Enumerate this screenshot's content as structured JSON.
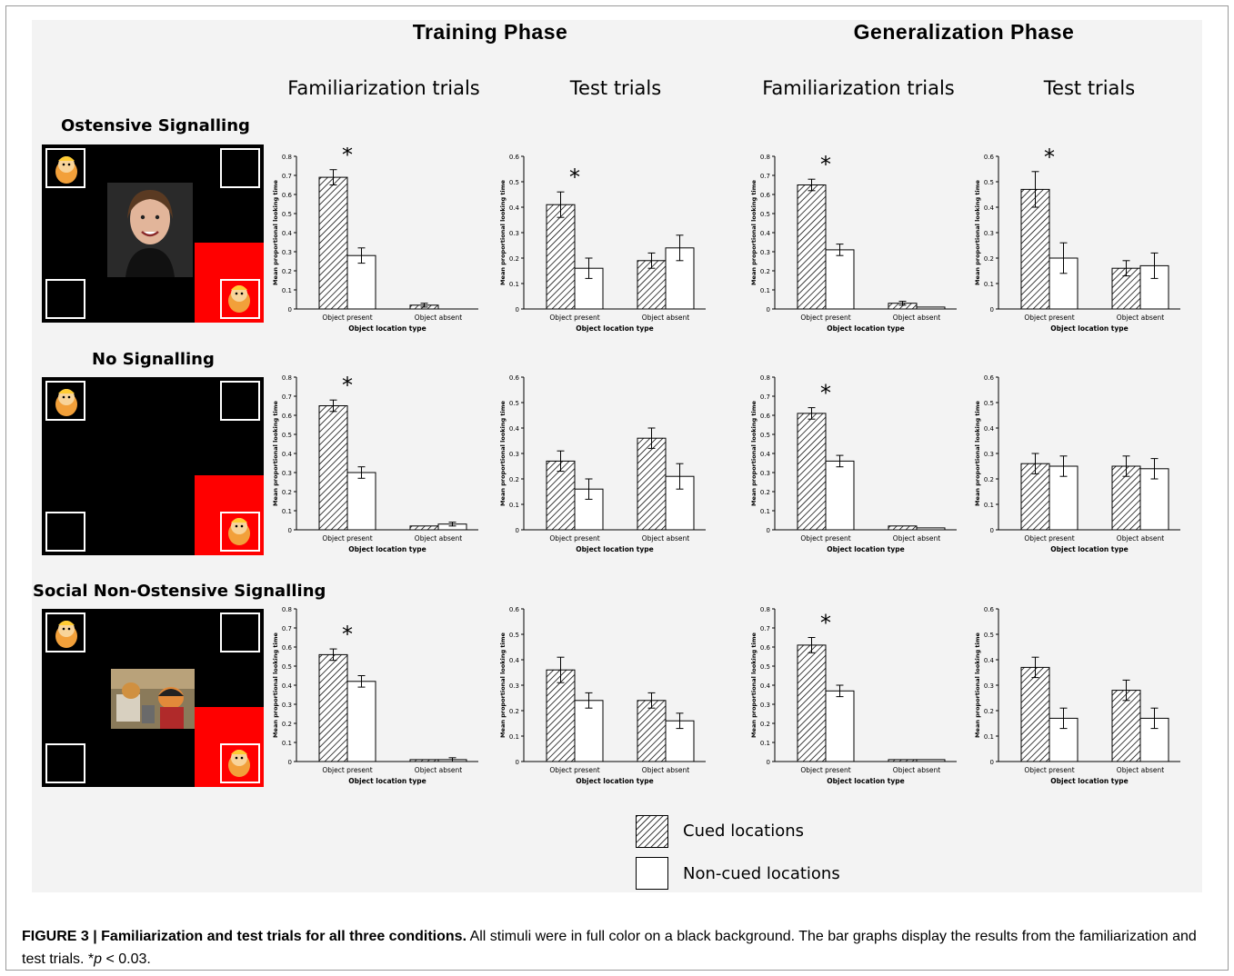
{
  "headers": {
    "training": "Training Phase",
    "generalization": "Generalization Phase",
    "fam1": "Familiarization trials",
    "test1": "Test trials",
    "fam2": "Familiarization trials",
    "test2": "Test trials"
  },
  "conditions": [
    "Ostensive Signalling",
    "No Signalling",
    "Social Non-Ostensive Signalling"
  ],
  "legend": {
    "cued": "Cued locations",
    "noncued": "Non-cued locations"
  },
  "caption": {
    "bold": "FIGURE 3 | Familiarization and test trials for all three conditions.",
    "text": " All stimuli were in full color on a black background. The bar graphs display the results from the familiarization and test trials. *",
    "p": "p",
    "tail": " < 0.03."
  },
  "colors": {
    "cued_fill": "hatched black diagonal",
    "noncued_fill": "#ffffff",
    "stimulus_bg": "#000000",
    "red_patch": "#ff0000"
  },
  "chart_data": [
    {
      "type": "bar",
      "row": "Ostensive Signalling",
      "phase": "Training Phase",
      "trial": "Familiarization trials",
      "ylim": [
        0,
        0.8
      ],
      "yticks": [
        "0",
        "0.1",
        "0.2",
        "0.3",
        "0.4",
        "0.5",
        "0.6",
        "0.7",
        "0.8"
      ],
      "ylabel": "Mean proportional looking time",
      "xlabel": "Object location type",
      "categories": [
        "Object present",
        "Object absent"
      ],
      "series": [
        {
          "name": "Cued locations",
          "values": [
            0.69,
            0.02
          ],
          "err": [
            0.04,
            0.01
          ]
        },
        {
          "name": "Non-cued locations",
          "values": [
            0.28,
            0.0
          ],
          "err": [
            0.04,
            0
          ]
        }
      ],
      "star": "*"
    },
    {
      "type": "bar",
      "row": "Ostensive Signalling",
      "phase": "Training Phase",
      "trial": "Test trials",
      "ylim": [
        0,
        0.6
      ],
      "yticks": [
        "0",
        "0.1",
        "0.2",
        "0.3",
        "0.4",
        "0.5",
        "0.6"
      ],
      "ylabel": "Mean proportional looking time",
      "xlabel": "Object location type",
      "categories": [
        "Object present",
        "Object absent"
      ],
      "series": [
        {
          "name": "Cued locations",
          "values": [
            0.41,
            0.19
          ],
          "err": [
            0.05,
            0.03
          ]
        },
        {
          "name": "Non-cued locations",
          "values": [
            0.16,
            0.24
          ],
          "err": [
            0.04,
            0.05
          ]
        }
      ],
      "star": "*"
    },
    {
      "type": "bar",
      "row": "Ostensive Signalling",
      "phase": "Generalization Phase",
      "trial": "Familiarization trials",
      "ylim": [
        0,
        0.8
      ],
      "yticks": [
        "0",
        "0.1",
        "0.2",
        "0.3",
        "0.4",
        "0.5",
        "0.6",
        "0.7",
        "0.8"
      ],
      "ylabel": "Mean proportional looking time",
      "xlabel": "Object location type",
      "categories": [
        "Object present",
        "Object absent"
      ],
      "series": [
        {
          "name": "Cued locations",
          "values": [
            0.65,
            0.03
          ],
          "err": [
            0.03,
            0.01
          ]
        },
        {
          "name": "Non-cued locations",
          "values": [
            0.31,
            0.01
          ],
          "err": [
            0.03,
            0
          ]
        }
      ],
      "star": "*"
    },
    {
      "type": "bar",
      "row": "Ostensive Signalling",
      "phase": "Generalization Phase",
      "trial": "Test trials",
      "ylim": [
        0,
        0.6
      ],
      "yticks": [
        "0",
        "0.1",
        "0.2",
        "0.3",
        "0.4",
        "0.5",
        "0.6"
      ],
      "ylabel": "Mean proportional looking time",
      "xlabel": "Object location type",
      "categories": [
        "Object present",
        "Object absent"
      ],
      "series": [
        {
          "name": "Cued locations",
          "values": [
            0.47,
            0.16
          ],
          "err": [
            0.07,
            0.03
          ]
        },
        {
          "name": "Non-cued locations",
          "values": [
            0.2,
            0.17
          ],
          "err": [
            0.06,
            0.05
          ]
        }
      ],
      "star": "*"
    },
    {
      "type": "bar",
      "row": "No Signalling",
      "phase": "Training Phase",
      "trial": "Familiarization trials",
      "ylim": [
        0,
        0.8
      ],
      "yticks": [
        "0",
        "0.1",
        "0.2",
        "0.3",
        "0.4",
        "0.5",
        "0.6",
        "0.7",
        "0.8"
      ],
      "ylabel": "Mean proportional looking time",
      "xlabel": "Object location type",
      "categories": [
        "Object present",
        "Object absent"
      ],
      "series": [
        {
          "name": "Cued locations",
          "values": [
            0.65,
            0.02
          ],
          "err": [
            0.03,
            0
          ]
        },
        {
          "name": "Non-cued locations",
          "values": [
            0.3,
            0.03
          ],
          "err": [
            0.03,
            0.01
          ]
        }
      ],
      "star": "*"
    },
    {
      "type": "bar",
      "row": "No Signalling",
      "phase": "Training Phase",
      "trial": "Test trials",
      "ylim": [
        0,
        0.6
      ],
      "yticks": [
        "0",
        "0.1",
        "0.2",
        "0.3",
        "0.4",
        "0.5",
        "0.6"
      ],
      "ylabel": "Mean proportional looking time",
      "xlabel": "Object location type",
      "categories": [
        "Object present",
        "Object absent"
      ],
      "series": [
        {
          "name": "Cued locations",
          "values": [
            0.27,
            0.36
          ],
          "err": [
            0.04,
            0.04
          ]
        },
        {
          "name": "Non-cued locations",
          "values": [
            0.16,
            0.21
          ],
          "err": [
            0.04,
            0.05
          ]
        }
      ],
      "star": ""
    },
    {
      "type": "bar",
      "row": "No Signalling",
      "phase": "Generalization Phase",
      "trial": "Familiarization trials",
      "ylim": [
        0,
        0.8
      ],
      "yticks": [
        "0",
        "0.1",
        "0.2",
        "0.3",
        "0.4",
        "0.5",
        "0.6",
        "0.7",
        "0.8"
      ],
      "ylabel": "Mean proportional looking time",
      "xlabel": "Object location type",
      "categories": [
        "Object present",
        "Object absent"
      ],
      "series": [
        {
          "name": "Cued locations",
          "values": [
            0.61,
            0.02
          ],
          "err": [
            0.03,
            0
          ]
        },
        {
          "name": "Non-cued locations",
          "values": [
            0.36,
            0.01
          ],
          "err": [
            0.03,
            0
          ]
        }
      ],
      "star": "*"
    },
    {
      "type": "bar",
      "row": "No Signalling",
      "phase": "Generalization Phase",
      "trial": "Test trials",
      "ylim": [
        0,
        0.6
      ],
      "yticks": [
        "0",
        "0.1",
        "0.2",
        "0.3",
        "0.4",
        "0.5",
        "0.6"
      ],
      "ylabel": "Mean proportional looking time",
      "xlabel": "Object location type",
      "categories": [
        "Object present",
        "Object absent"
      ],
      "series": [
        {
          "name": "Cued locations",
          "values": [
            0.26,
            0.25
          ],
          "err": [
            0.04,
            0.04
          ]
        },
        {
          "name": "Non-cued locations",
          "values": [
            0.25,
            0.24
          ],
          "err": [
            0.04,
            0.04
          ]
        }
      ],
      "star": ""
    },
    {
      "type": "bar",
      "row": "Social Non-Ostensive Signalling",
      "phase": "Training Phase",
      "trial": "Familiarization trials",
      "ylim": [
        0,
        0.8
      ],
      "yticks": [
        "0",
        "0.1",
        "0.2",
        "0.3",
        "0.4",
        "0.5",
        "0.6",
        "0.7",
        "0.8"
      ],
      "ylabel": "Mean proportional looking time",
      "xlabel": "Object location type",
      "categories": [
        "Object present",
        "Object absent"
      ],
      "series": [
        {
          "name": "Cued locations",
          "values": [
            0.56,
            0.01
          ],
          "err": [
            0.03,
            0
          ]
        },
        {
          "name": "Non-cued locations",
          "values": [
            0.42,
            0.01
          ],
          "err": [
            0.03,
            0.01
          ]
        }
      ],
      "star": "*"
    },
    {
      "type": "bar",
      "row": "Social Non-Ostensive Signalling",
      "phase": "Training Phase",
      "trial": "Test trials",
      "ylim": [
        0,
        0.6
      ],
      "yticks": [
        "0",
        "0.1",
        "0.2",
        "0.3",
        "0.4",
        "0.5",
        "0.6"
      ],
      "ylabel": "Mean proportional looking time",
      "xlabel": "Object location type",
      "categories": [
        "Object present",
        "Object absent"
      ],
      "series": [
        {
          "name": "Cued locations",
          "values": [
            0.36,
            0.24
          ],
          "err": [
            0.05,
            0.03
          ]
        },
        {
          "name": "Non-cued locations",
          "values": [
            0.24,
            0.16
          ],
          "err": [
            0.03,
            0.03
          ]
        }
      ],
      "star": ""
    },
    {
      "type": "bar",
      "row": "Social Non-Ostensive Signalling",
      "phase": "Generalization Phase",
      "trial": "Familiarization trials",
      "ylim": [
        0,
        0.8
      ],
      "yticks": [
        "0",
        "0.1",
        "0.2",
        "0.3",
        "0.4",
        "0.5",
        "0.6",
        "0.7",
        "0.8"
      ],
      "ylabel": "Mean proportional looking time",
      "xlabel": "Object location type",
      "categories": [
        "Object present",
        "Object absent"
      ],
      "series": [
        {
          "name": "Cued locations",
          "values": [
            0.61,
            0.01
          ],
          "err": [
            0.04,
            0
          ]
        },
        {
          "name": "Non-cued locations",
          "values": [
            0.37,
            0.01
          ],
          "err": [
            0.03,
            0
          ]
        }
      ],
      "star": "*"
    },
    {
      "type": "bar",
      "row": "Social Non-Ostensive Signalling",
      "phase": "Generalization Phase",
      "trial": "Test trials",
      "ylim": [
        0,
        0.6
      ],
      "yticks": [
        "0",
        "0.1",
        "0.2",
        "0.3",
        "0.4",
        "0.5",
        "0.6"
      ],
      "ylabel": "Mean proportional looking time",
      "xlabel": "Object location type",
      "categories": [
        "Object present",
        "Object absent"
      ],
      "series": [
        {
          "name": "Cued locations",
          "values": [
            0.37,
            0.28
          ],
          "err": [
            0.04,
            0.04
          ]
        },
        {
          "name": "Non-cued locations",
          "values": [
            0.17,
            0.17
          ],
          "err": [
            0.04,
            0.04
          ]
        }
      ],
      "star": ""
    }
  ]
}
